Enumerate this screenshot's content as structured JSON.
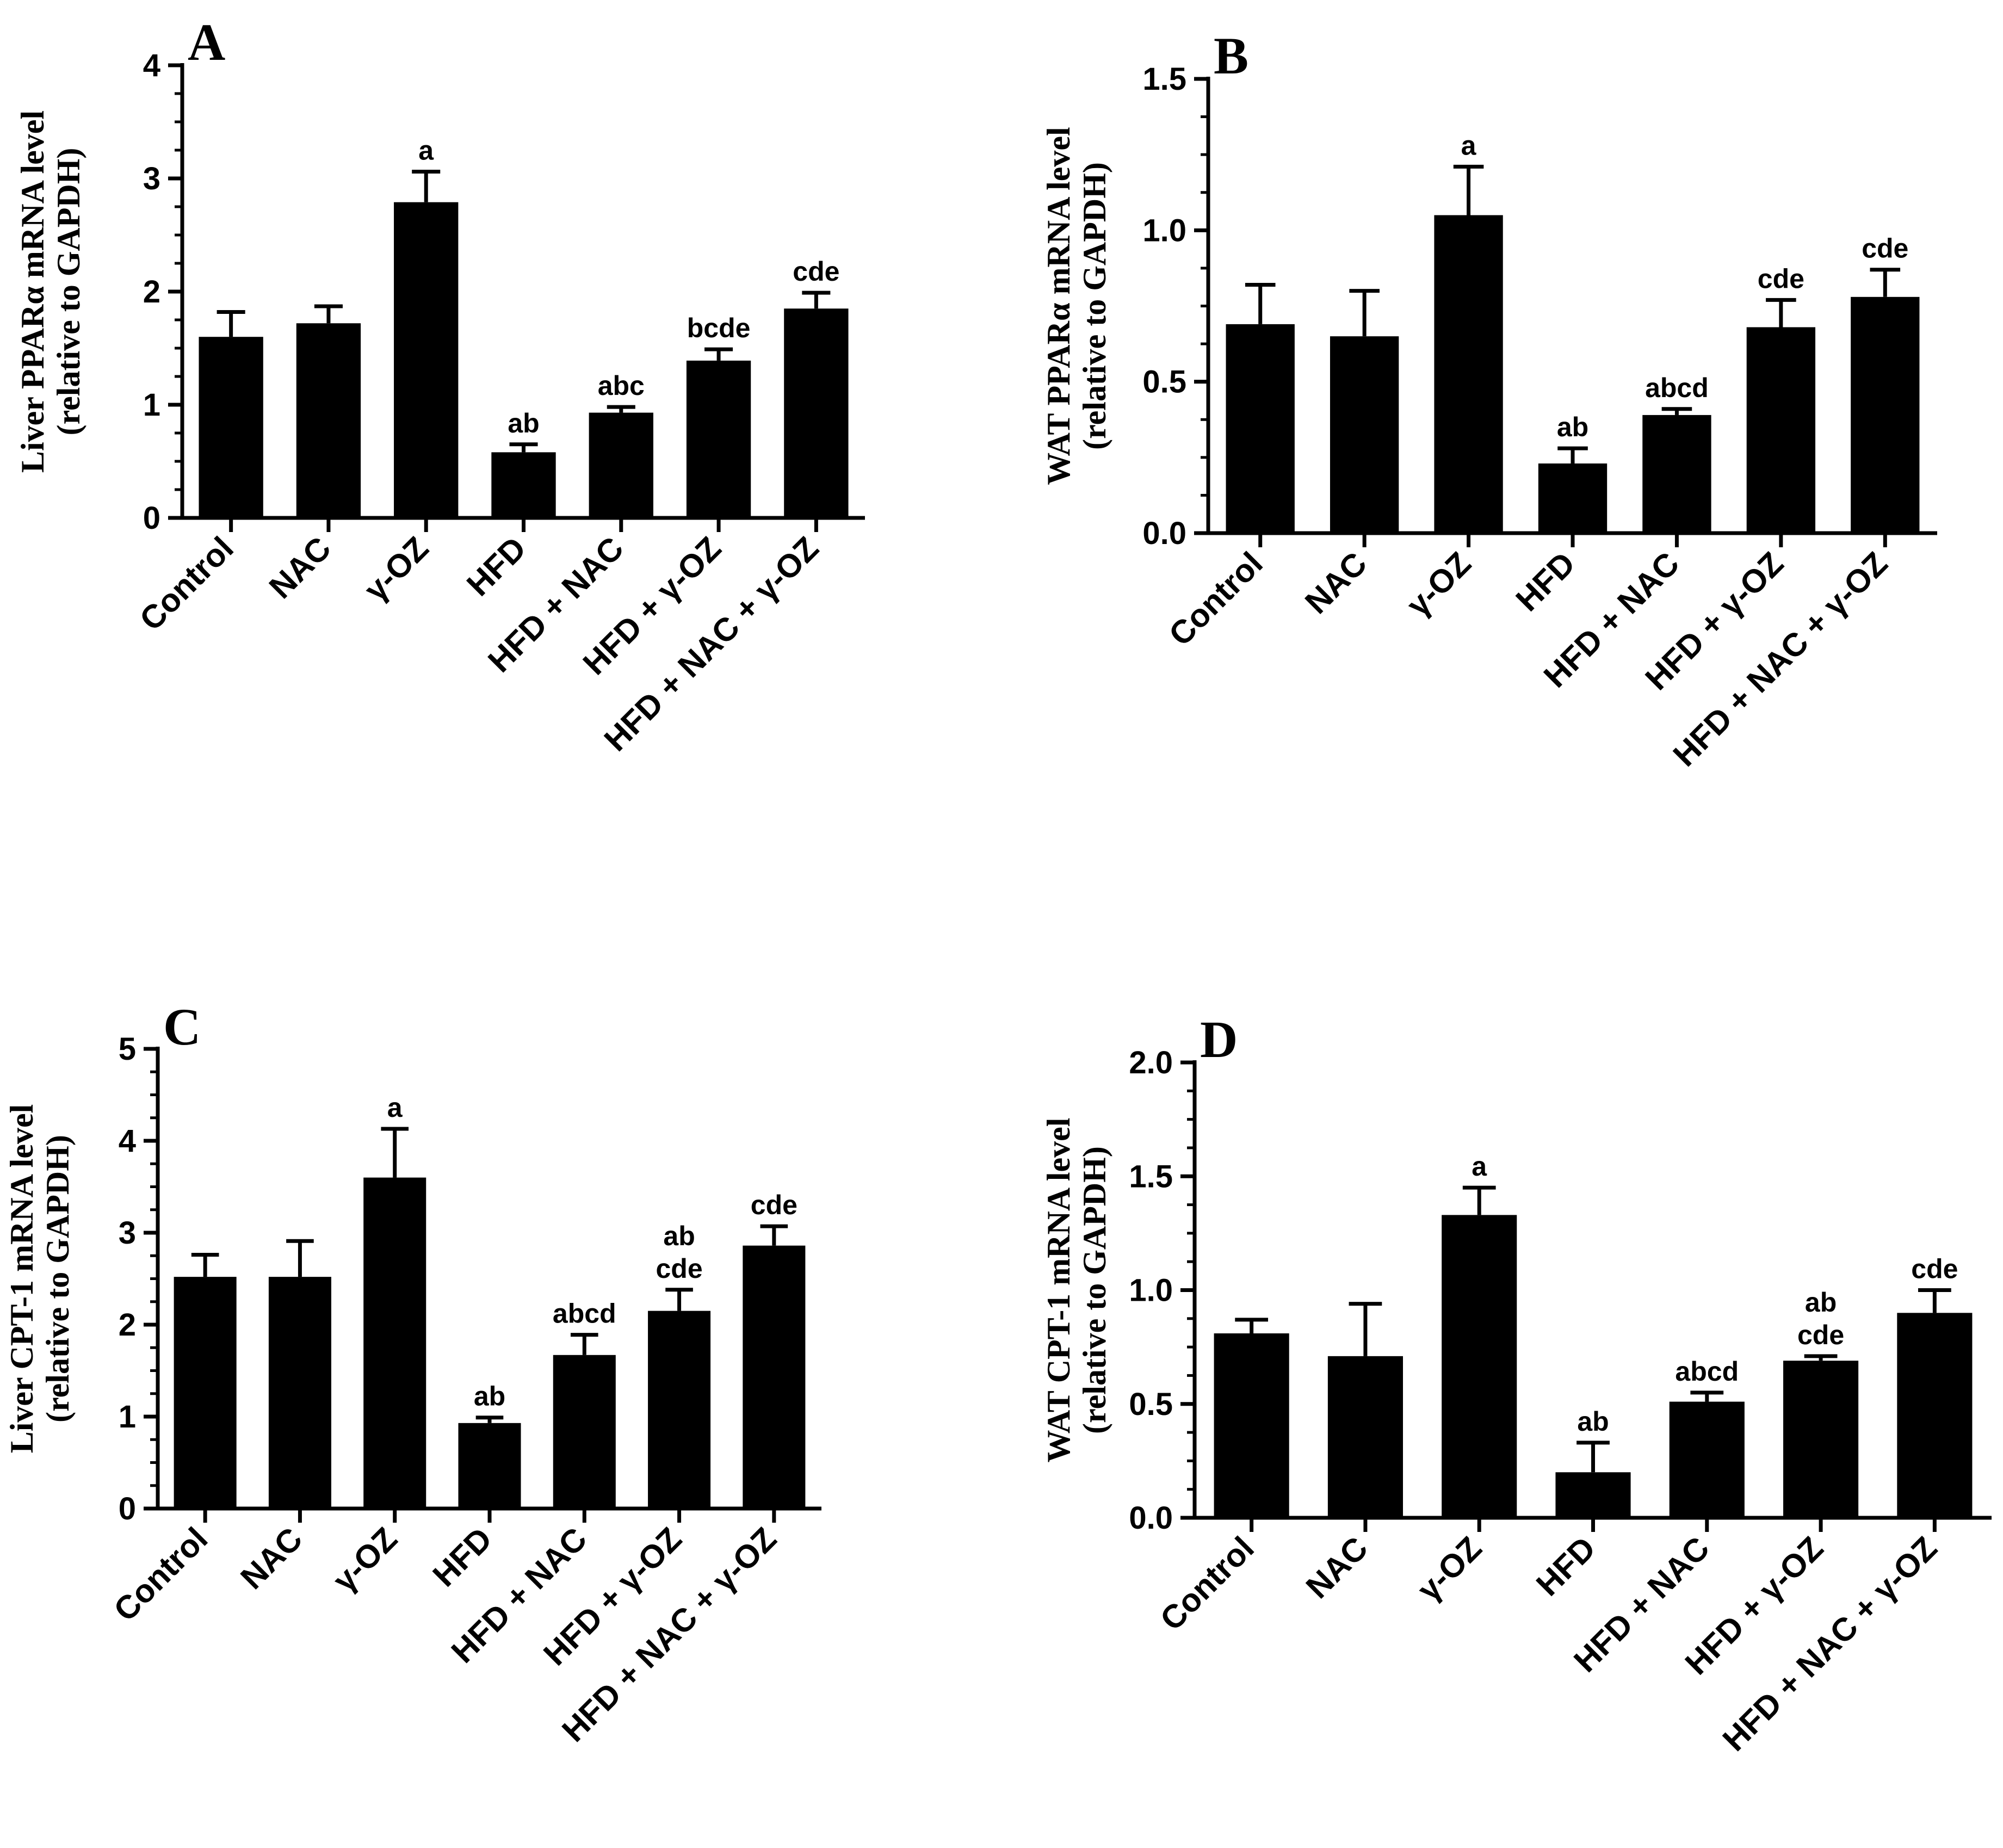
{
  "figure": {
    "panels": [
      {
        "letter": "A",
        "ylabel_lines": [
          "Liver PPARα mRNA level",
          "(relative to GAPDH)"
        ],
        "categories": [
          "Control",
          "NAC",
          "γ-OZ",
          "HFD",
          "HFD + NAC",
          "HFD + γ-OZ",
          "HFD + NAC + γ-OZ"
        ],
        "yticks": [
          "0",
          "1",
          "2",
          "3",
          "4"
        ],
        "ylim": [
          0,
          4
        ]
      },
      {
        "letter": "B",
        "ylabel_lines": [
          "WAT PPARα mRNA level",
          "(relative to GAPDH)"
        ],
        "categories": [
          "Control",
          "NAC",
          "γ-OZ",
          "HFD",
          "HFD + NAC",
          "HFD + γ-OZ",
          "HFD + NAC + γ-OZ"
        ],
        "yticks": [
          "0.0",
          "0.5",
          "1.0",
          "1.5"
        ],
        "ylim": [
          0,
          1.5
        ]
      },
      {
        "letter": "C",
        "ylabel_lines": [
          "Liver CPT-1 mRNA level",
          "(relative to GAPDH)"
        ],
        "categories": [
          "Control",
          "NAC",
          "γ-OZ",
          "HFD",
          "HFD + NAC",
          "HFD + γ-OZ",
          "HFD + NAC + γ-OZ"
        ],
        "yticks": [
          "0",
          "1",
          "2",
          "3",
          "4",
          "5"
        ],
        "ylim": [
          0,
          5
        ]
      },
      {
        "letter": "D",
        "ylabel_lines": [
          "WAT CPT-1 mRNA level",
          "(relative to GAPDH)"
        ],
        "categories": [
          "Control",
          "NAC",
          "γ-OZ",
          "HFD",
          "HFD + NAC",
          "HFD + γ-OZ",
          "HFD + NAC + γ-OZ"
        ],
        "yticks": [
          "0.0",
          "0.5",
          "1.0",
          "1.5",
          "2.0"
        ],
        "ylim": [
          0,
          2
        ]
      }
    ]
  },
  "chart_data": [
    {
      "type": "bar",
      "title": "A",
      "ylabel": "Liver PPARα mRNA level (relative to GAPDH)",
      "categories": [
        "Control",
        "NAC",
        "γ-OZ",
        "HFD",
        "HFD + NAC",
        "HFD + γ-OZ",
        "HFD + NAC + γ-OZ"
      ],
      "values": [
        1.6,
        1.72,
        2.79,
        0.58,
        0.93,
        1.39,
        1.85
      ],
      "errors": [
        0.22,
        0.15,
        0.27,
        0.07,
        0.05,
        0.1,
        0.14
      ],
      "significance": [
        "",
        "",
        "a",
        "ab",
        "abc",
        "bcde",
        "cde"
      ],
      "ylim": [
        0,
        4
      ],
      "minor_ticks_per_major": 4
    },
    {
      "type": "bar",
      "title": "B",
      "ylabel": "WAT PPARα mRNA level (relative to GAPDH)",
      "categories": [
        "Control",
        "NAC",
        "γ-OZ",
        "HFD",
        "HFD + NAC",
        "HFD + γ-OZ",
        "HFD + NAC + γ-OZ"
      ],
      "values": [
        0.69,
        0.65,
        1.05,
        0.23,
        0.39,
        0.68,
        0.78
      ],
      "errors": [
        0.13,
        0.15,
        0.16,
        0.05,
        0.02,
        0.09,
        0.09
      ],
      "significance": [
        "",
        "",
        "a",
        "ab",
        "abcd",
        "cde",
        "cde"
      ],
      "ylim": [
        0,
        1.5
      ],
      "minor_ticks_per_major": 4
    },
    {
      "type": "bar",
      "title": "C",
      "ylabel": "Liver CPT-1 mRNA level (relative to GAPDH)",
      "categories": [
        "Control",
        "NAC",
        "γ-OZ",
        "HFD",
        "HFD + NAC",
        "HFD + γ-OZ",
        "HFD + NAC + γ-OZ"
      ],
      "values": [
        2.52,
        2.52,
        3.6,
        0.93,
        1.67,
        2.15,
        2.86
      ],
      "errors": [
        0.24,
        0.39,
        0.53,
        0.06,
        0.22,
        0.23,
        0.21
      ],
      "significance": [
        "",
        "",
        "a",
        "ab",
        "abcd",
        "ab\ncde",
        "cde"
      ],
      "ylim": [
        0,
        5
      ],
      "minor_ticks_per_major": 4
    },
    {
      "type": "bar",
      "title": "D",
      "ylabel": "WAT CPT-1 mRNA level (relative to GAPDH)",
      "categories": [
        "Control",
        "NAC",
        "γ-OZ",
        "HFD",
        "HFD + NAC",
        "HFD + γ-OZ",
        "HFD + NAC + γ-OZ"
      ],
      "values": [
        0.81,
        0.71,
        1.33,
        0.2,
        0.51,
        0.69,
        0.9
      ],
      "errors": [
        0.06,
        0.23,
        0.12,
        0.13,
        0.04,
        0.02,
        0.1
      ],
      "significance": [
        "",
        "",
        "a",
        "ab",
        "abcd",
        "ab\ncde",
        "cde"
      ],
      "ylim": [
        0,
        2
      ],
      "minor_ticks_per_major": 4
    }
  ]
}
